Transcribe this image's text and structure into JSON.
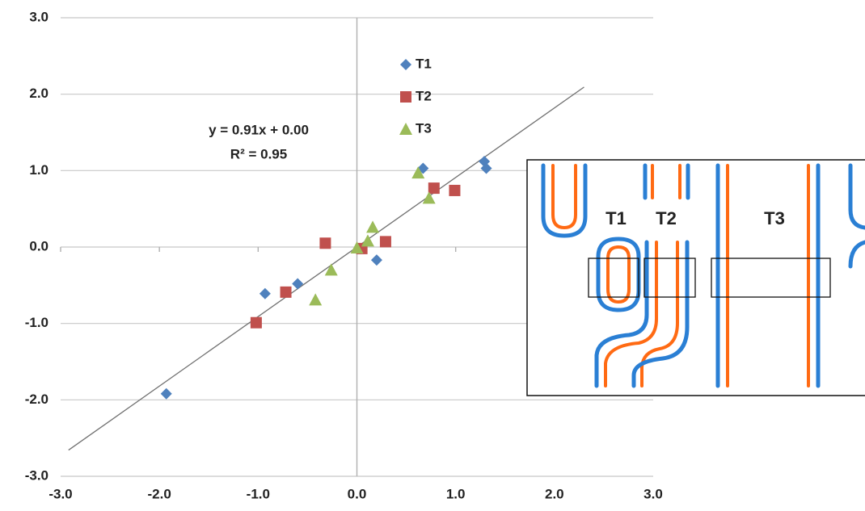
{
  "chart_data": {
    "type": "scatter",
    "xlim": [
      -3.0,
      3.0
    ],
    "ylim": [
      -3.0,
      3.0
    ],
    "xticks": [
      {
        "value": -3,
        "label": "-3.0"
      },
      {
        "value": -2,
        "label": "-2.0"
      },
      {
        "value": -1,
        "label": "-1.0"
      },
      {
        "value": 0,
        "label": "0.0"
      },
      {
        "value": 1,
        "label": "1.0"
      },
      {
        "value": 2,
        "label": "2.0"
      },
      {
        "value": 3,
        "label": "3.0"
      }
    ],
    "yticks": [
      {
        "value": -3,
        "label": "-3.0"
      },
      {
        "value": -2,
        "label": "-2.0"
      },
      {
        "value": -1,
        "label": "-1.0"
      },
      {
        "value": 0,
        "label": "0.0"
      },
      {
        "value": 1,
        "label": "1.0"
      },
      {
        "value": 2,
        "label": "2.0"
      },
      {
        "value": 3,
        "label": "3.0"
      }
    ],
    "grid": true,
    "legend": "top",
    "series": [
      {
        "name": "T1",
        "color": "#4f81bd",
        "marker": "diamond",
        "x": [
          -1.93,
          -0.93,
          -0.6,
          0.2,
          0.67,
          1.29,
          1.31
        ],
        "values": [
          -1.92,
          -0.61,
          -0.48,
          -0.17,
          1.03,
          1.12,
          1.03
        ]
      },
      {
        "name": "T2",
        "color": "#c0504d",
        "marker": "square",
        "x": [
          -1.02,
          -0.72,
          -0.32,
          0.05,
          0.29,
          0.78,
          0.99
        ],
        "values": [
          -0.99,
          -0.59,
          0.05,
          -0.02,
          0.07,
          0.77,
          0.74
        ]
      },
      {
        "name": "T3",
        "color": "#9bbb59",
        "marker": "triangle",
        "x": [
          -0.42,
          -0.26,
          0.0,
          0.11,
          0.16,
          0.62,
          0.73
        ],
        "values": [
          -0.69,
          -0.3,
          -0.01,
          0.08,
          0.26,
          0.97,
          0.64
        ]
      }
    ],
    "trendline": {
      "equation": "y = 0.91x + 0.00",
      "r2": "R² = 0.95",
      "slope": 0.91,
      "intercept": 0.0,
      "x_range": [
        -2.92,
        2.3
      ],
      "color": "#707070"
    }
  },
  "inset": {
    "labels": [
      "T1",
      "T2",
      "T3"
    ]
  }
}
